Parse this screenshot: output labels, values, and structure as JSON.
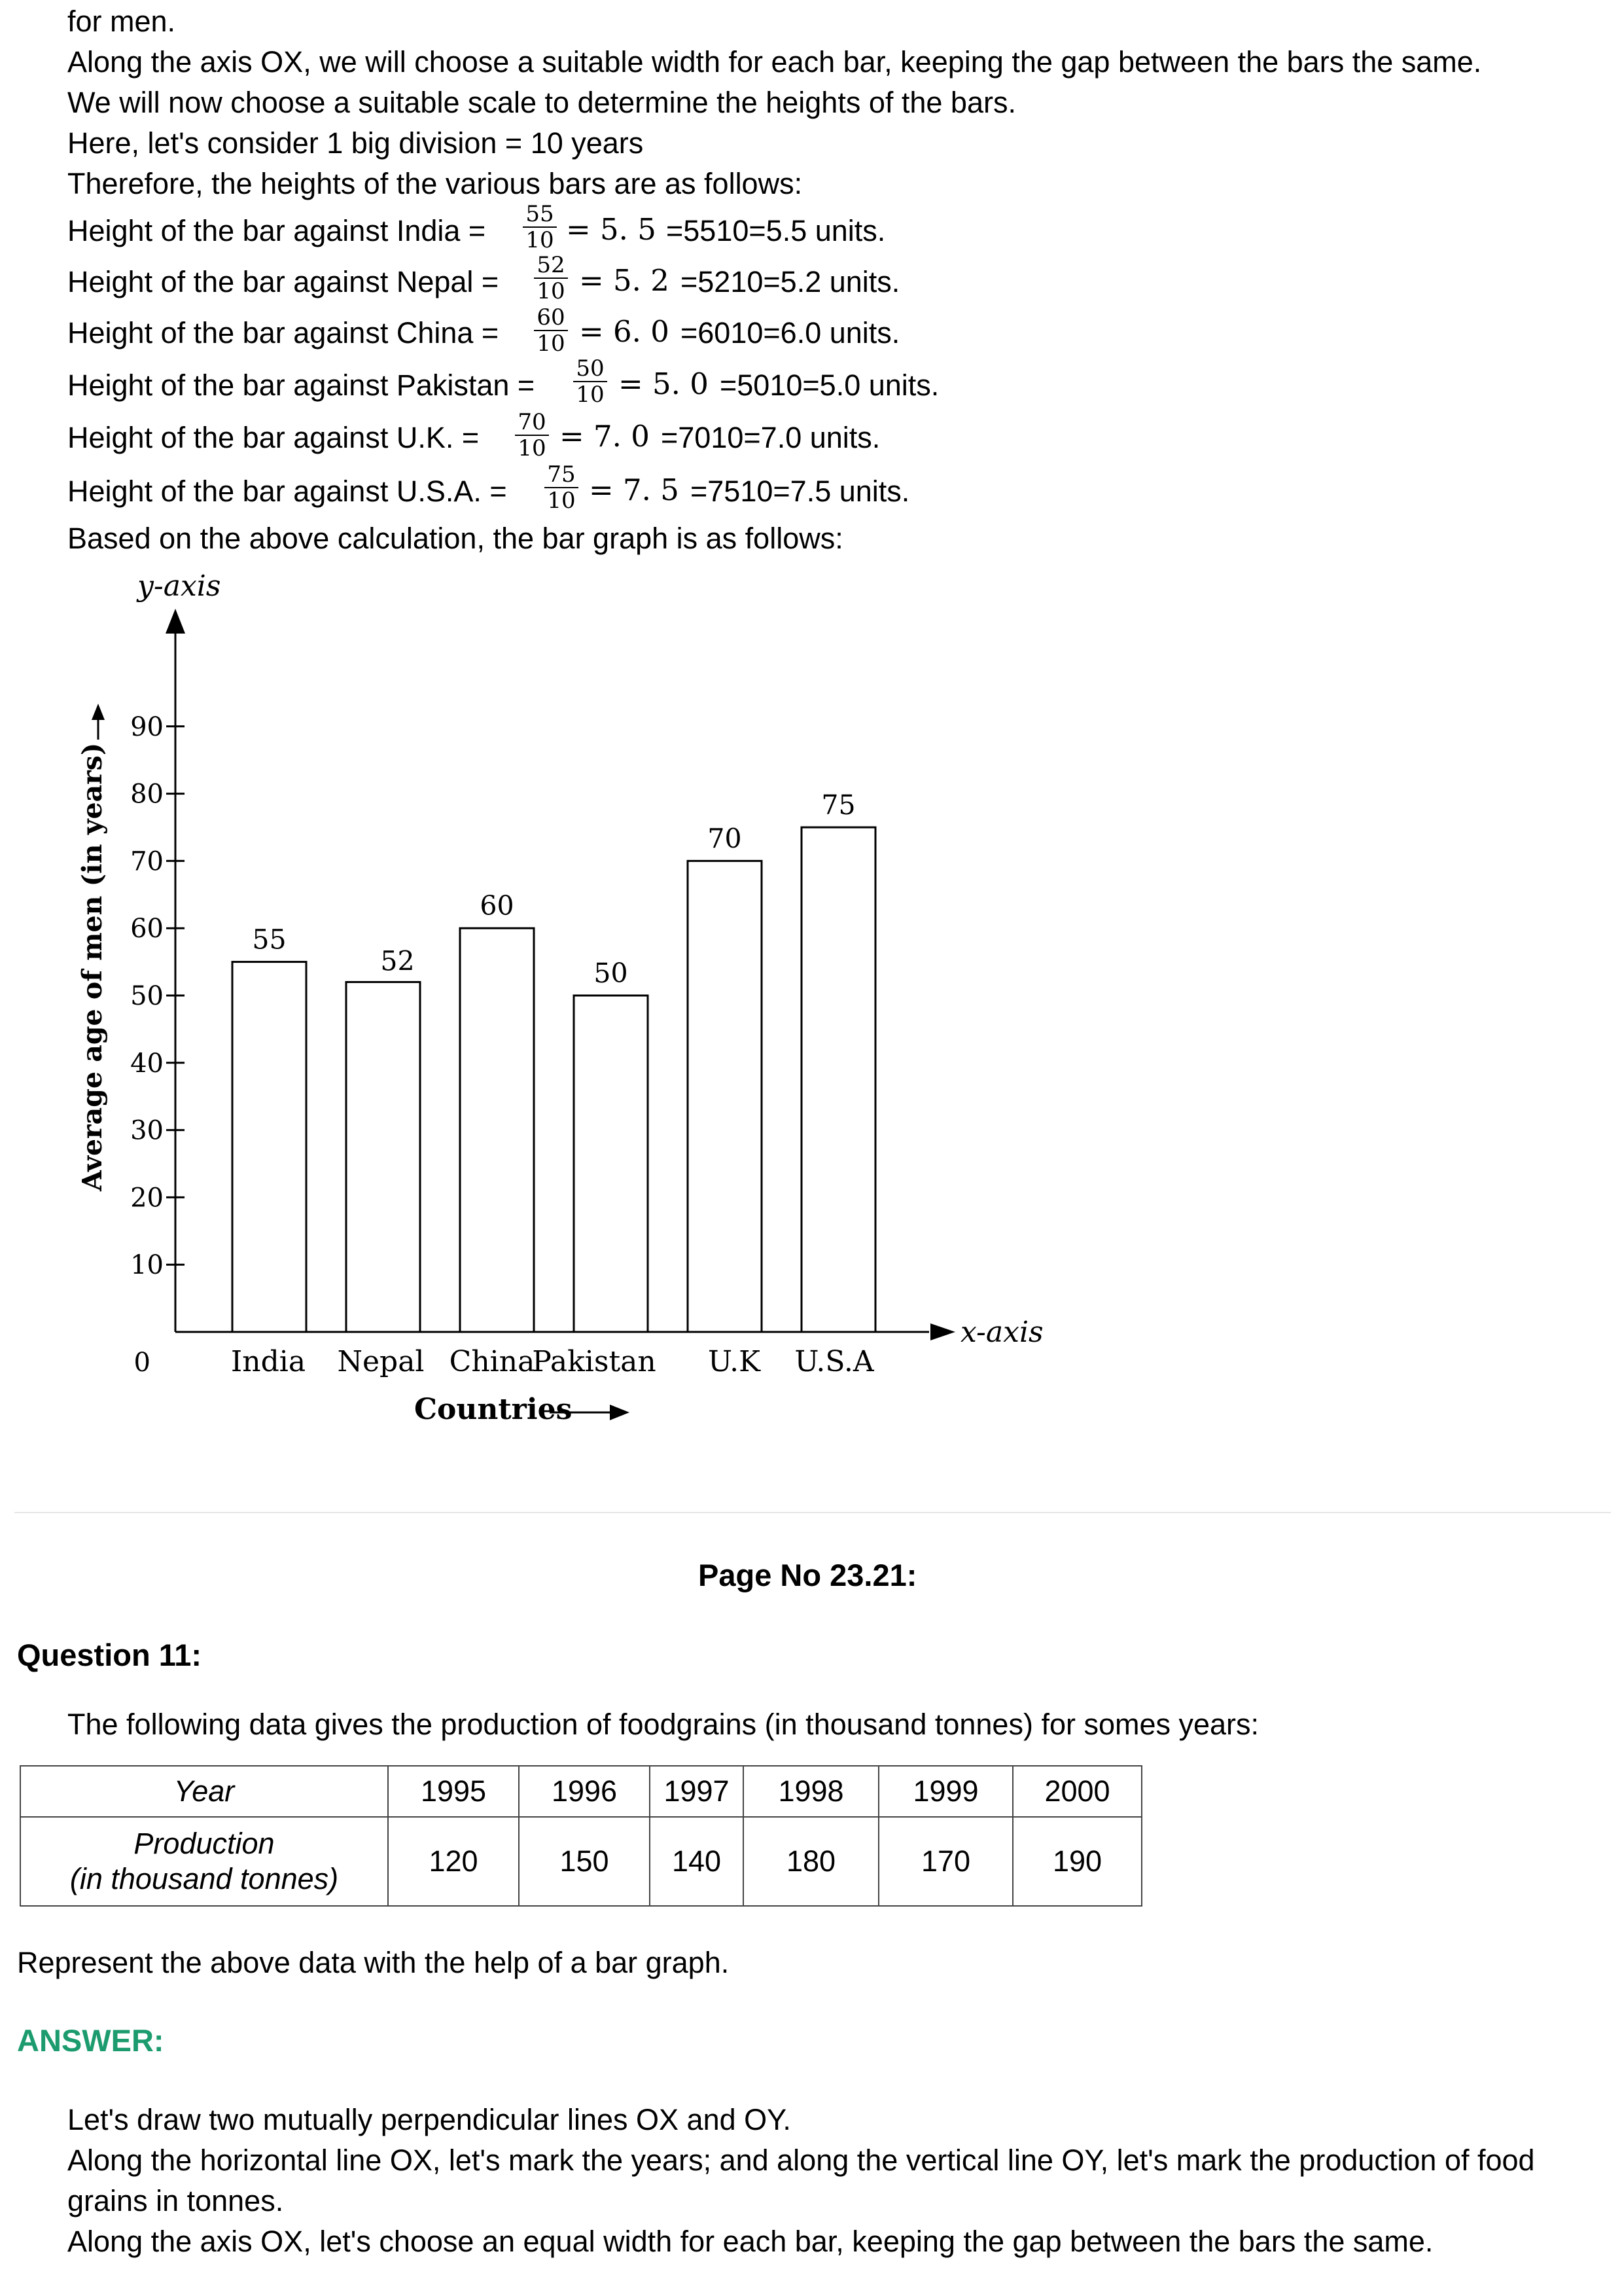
{
  "intro": {
    "lines": [
      "for men.",
      "Along the axis OX, we will choose a suitable width for each bar, keeping the gap between the bars the same.",
      "We will now choose a suitable scale to determine the heights of the bars.",
      "Here, let's consider 1 big division = 10 years",
      "Therefore, the heights of the various bars are as follows:"
    ]
  },
  "heights": [
    {
      "label": "Height of the bar against India =",
      "num": "55",
      "den": "10",
      "eq": "= 5. 5",
      "tail": "=5510=5.5 units."
    },
    {
      "label": "Height of the bar against Nepal =",
      "num": "52",
      "den": "10",
      "eq": "= 5. 2",
      "tail": "=5210=5.2 units."
    },
    {
      "label": "Height of the bar against China =",
      "num": "60",
      "den": "10",
      "eq": "= 6. 0",
      "tail": "=6010=6.0 units."
    },
    {
      "label": "Height of the bar against Pakistan =",
      "num": "50",
      "den": "10",
      "eq": "= 5. 0",
      "tail": "=5010=5.0 units."
    },
    {
      "label": "Height of the bar against U.K. =",
      "num": "70",
      "den": "10",
      "eq": "= 7. 0",
      "tail": "=7010=7.0 units."
    },
    {
      "label": "Height of the bar against U.S.A. =",
      "num": "75",
      "den": "10",
      "eq": "= 7. 5",
      "tail": "=7510=7.5 units."
    }
  ],
  "based_on": "Based on the above calculation, the bar graph is as follows:",
  "chart_data": {
    "type": "bar",
    "categories": [
      "India",
      "Nepal",
      "China",
      "Pakistan",
      "U.K",
      "U.S.A"
    ],
    "values": [
      55,
      52,
      60,
      50,
      70,
      75
    ],
    "data_labels": [
      "55",
      "52",
      "60",
      "50",
      "70",
      "75"
    ],
    "yticks": [
      0,
      10,
      20,
      30,
      40,
      50,
      60,
      70,
      80,
      90
    ],
    "ylim": [
      0,
      90
    ],
    "ylabel": "Average age of men (in years)",
    "xlabel": "Countries",
    "y_axis_name": "y-axis",
    "x_axis_name": "x-axis",
    "grid": false
  },
  "page_no": "Page No 23.21:",
  "question": {
    "title": "Question 11:",
    "text": "The following data gives the production of foodgrains (in thousand tonnes) for somes years:",
    "table": {
      "row1_header": "Year",
      "row2_header_line1": "Production",
      "row2_header_line2": "(in thousand tonnes)",
      "years": [
        "1995",
        "1996",
        "1997",
        "1998",
        "1999",
        "2000"
      ],
      "production": [
        "120",
        "150",
        "140",
        "180",
        "170",
        "190"
      ]
    },
    "instruction": "Represent the above data with the help of a bar graph."
  },
  "answer": {
    "label": "ANSWER:",
    "lines": [
      "Let's draw two mutually perpendicular lines OX and OY.",
      "Along the horizontal line OX, let's mark the years; and along the vertical line OY, let's mark the production of food",
      "grains in tonnes.",
      "Along the axis OX, let's choose an equal width for each bar, keeping the gap between the bars the same."
    ]
  }
}
